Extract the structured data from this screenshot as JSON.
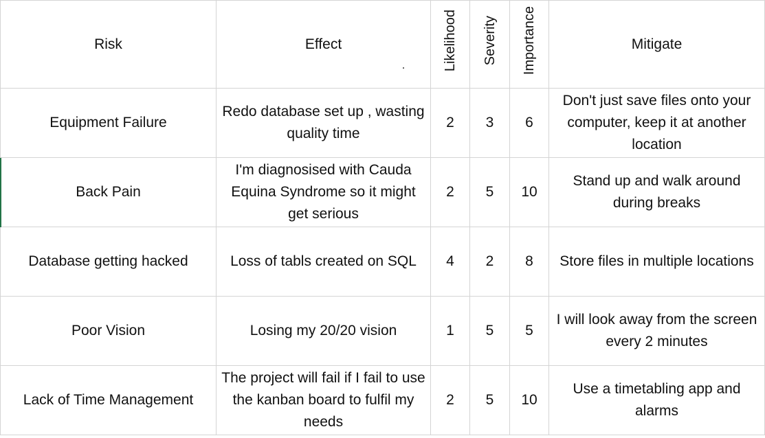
{
  "headers": {
    "risk": "Risk",
    "effect": "Effect",
    "likelihood": "Likelihood",
    "severity": "Severity",
    "importance": "Importance",
    "mitigate": "Mitigate"
  },
  "rows": [
    {
      "risk": "Equipment Failure",
      "effect": "Redo database set up , wasting quality time",
      "likelihood": "2",
      "severity": "3",
      "importance": "6",
      "mitigate": "Don't just save files onto your computer, keep it at another location"
    },
    {
      "risk": "Back Pain",
      "effect": "I'm diagnosised with Cauda Equina Syndrome so it might get serious",
      "likelihood": "2",
      "severity": "5",
      "importance": "10",
      "mitigate": "Stand up and walk around during breaks"
    },
    {
      "risk": "Database getting hacked",
      "effect": "Loss of tabls created on SQL",
      "likelihood": "4",
      "severity": "2",
      "importance": "8",
      "mitigate": "Store files in multiple locations"
    },
    {
      "risk": "Poor Vision",
      "effect": "Losing my 20/20 vision",
      "likelihood": "1",
      "severity": "5",
      "importance": "5",
      "mitigate": "I will look away from the screen every 2 minutes"
    },
    {
      "risk": "Lack of Time Management",
      "effect": "The project will fail if I fail to use the kanban board to fulfil my needs",
      "likelihood": "2",
      "severity": "5",
      "importance": "10",
      "mitigate": "Use a timetabling app and alarms"
    }
  ]
}
